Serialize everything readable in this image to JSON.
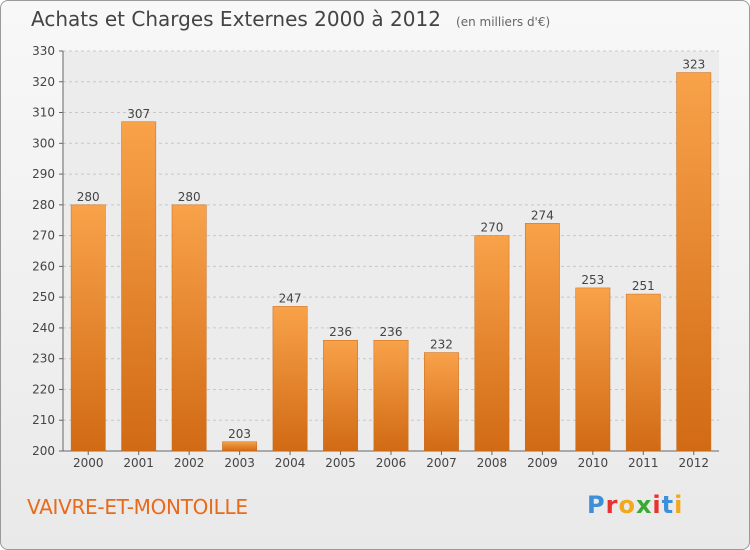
{
  "header": {
    "title": "Achats et Charges Externes 2000 à 2012",
    "subtitle": "(en milliers d'€)"
  },
  "footer": {
    "location": "VAIVRE-ET-MONTOILLE",
    "logo_letters": [
      "P",
      "r",
      "o",
      "x",
      "i",
      "t",
      "i"
    ],
    "logo_colors": [
      "#3c8fd8",
      "#e8322f",
      "#f2a81d",
      "#3aaa35",
      "#e8322f",
      "#3c8fd8",
      "#f2a81d"
    ]
  },
  "chart_data": {
    "type": "bar",
    "title": "Achats et Charges Externes 2000 à 2012",
    "subtitle": "(en milliers d'€)",
    "xlabel": "",
    "ylabel": "",
    "categories": [
      "2000",
      "2001",
      "2002",
      "2003",
      "2004",
      "2005",
      "2006",
      "2007",
      "2008",
      "2009",
      "2010",
      "2011",
      "2012"
    ],
    "values": [
      280,
      307,
      280,
      203,
      247,
      236,
      236,
      232,
      270,
      274,
      253,
      251,
      323
    ],
    "ylim": [
      200,
      330
    ],
    "yticks": [
      200,
      210,
      220,
      230,
      240,
      250,
      260,
      270,
      280,
      290,
      300,
      310,
      320,
      330
    ],
    "grid": true,
    "bar_color": "#f0922e",
    "bar_dark_color": "#d4701a"
  }
}
